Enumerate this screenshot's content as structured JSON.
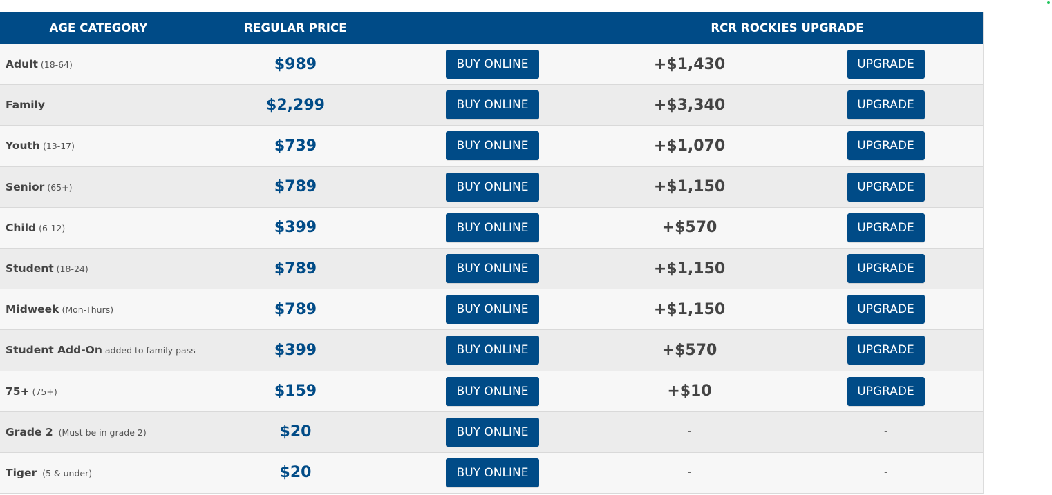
{
  "header": {
    "age_category": "AGE CATEGORY",
    "regular_price": "REGULAR PRICE",
    "upgrade": "RCR ROCKIES UPGRADE"
  },
  "buy_label": "BUY ONLINE",
  "upgrade_label": "UPGRADE",
  "rows": [
    {
      "name": "Adult",
      "sub": "(18-64)",
      "price": "$989",
      "upgrade_price": "+$1,430",
      "has_upgrade": true
    },
    {
      "name": "Family",
      "sub": "",
      "price": "$2,299",
      "upgrade_price": "+$3,340",
      "has_upgrade": true
    },
    {
      "name": "Youth",
      "sub": "(13-17)",
      "price": "$739",
      "upgrade_price": "+$1,070",
      "has_upgrade": true
    },
    {
      "name": "Senior",
      "sub": "(65+)",
      "price": "$789",
      "upgrade_price": "+$1,150",
      "has_upgrade": true
    },
    {
      "name": "Child",
      "sub": "(6-12)",
      "price": "$399",
      "upgrade_price": "+$570",
      "has_upgrade": true
    },
    {
      "name": "Student",
      "sub": "(18-24)",
      "price": "$789",
      "upgrade_price": "+$1,150",
      "has_upgrade": true
    },
    {
      "name": "Midweek",
      "sub": "(Mon-Thurs)",
      "price": "$789",
      "upgrade_price": "+$1,150",
      "has_upgrade": true
    },
    {
      "name": "Student Add-On",
      "sub": "added to family pass",
      "price": "$399",
      "upgrade_price": "+$570",
      "has_upgrade": true
    },
    {
      "name": "75+",
      "sub": "(75+)",
      "price": "$159",
      "upgrade_price": "+$10",
      "has_upgrade": true
    },
    {
      "name": "Grade 2",
      "sub": " (Must be in grade 2)",
      "price": "$20",
      "upgrade_price": "-",
      "upgrade_button": "-",
      "has_upgrade": false
    },
    {
      "name": "Tiger",
      "sub": " (5 & under)",
      "price": "$20",
      "upgrade_price": "-",
      "upgrade_button": "-",
      "has_upgrade": false
    }
  ],
  "colors": {
    "brand_blue": "#004b87",
    "row_light": "#f7f7f7",
    "row_dark": "#ececec"
  }
}
